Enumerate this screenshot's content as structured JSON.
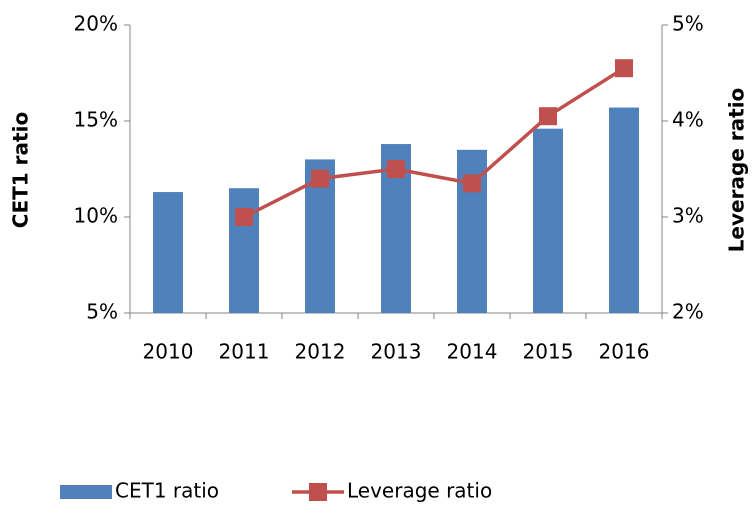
{
  "chart_data": {
    "type": "bar-line",
    "categories": [
      "2010",
      "2011",
      "2012",
      "2013",
      "2014",
      "2015",
      "2016"
    ],
    "series": [
      {
        "name": "CET1 ratio",
        "type": "bar",
        "color": "#4f81bd",
        "values": [
          11.3,
          11.5,
          13.0,
          13.8,
          13.5,
          14.6,
          15.7
        ]
      },
      {
        "name": "Leverage ratio",
        "type": "line",
        "axis": "y2",
        "color": "#c0504d",
        "values": [
          null,
          3.0,
          3.4,
          3.5,
          3.35,
          4.05,
          4.55
        ]
      }
    ],
    "ylabel": "CET1 ratio",
    "y2label": "Leverage ratio",
    "ylim": [
      5,
      20
    ],
    "yticks": [
      {
        "value": 5,
        "label": "5%"
      },
      {
        "value": 10,
        "label": "10%"
      },
      {
        "value": 15,
        "label": "15%"
      },
      {
        "value": 20,
        "label": "20%"
      }
    ],
    "y2lim": [
      2,
      5
    ],
    "y2ticks": [
      {
        "value": 2,
        "label": "2%"
      },
      {
        "value": 3,
        "label": "3%"
      },
      {
        "value": 4,
        "label": "4%"
      },
      {
        "value": 5,
        "label": "5%"
      }
    ],
    "grid": false,
    "legend": "bottom"
  }
}
